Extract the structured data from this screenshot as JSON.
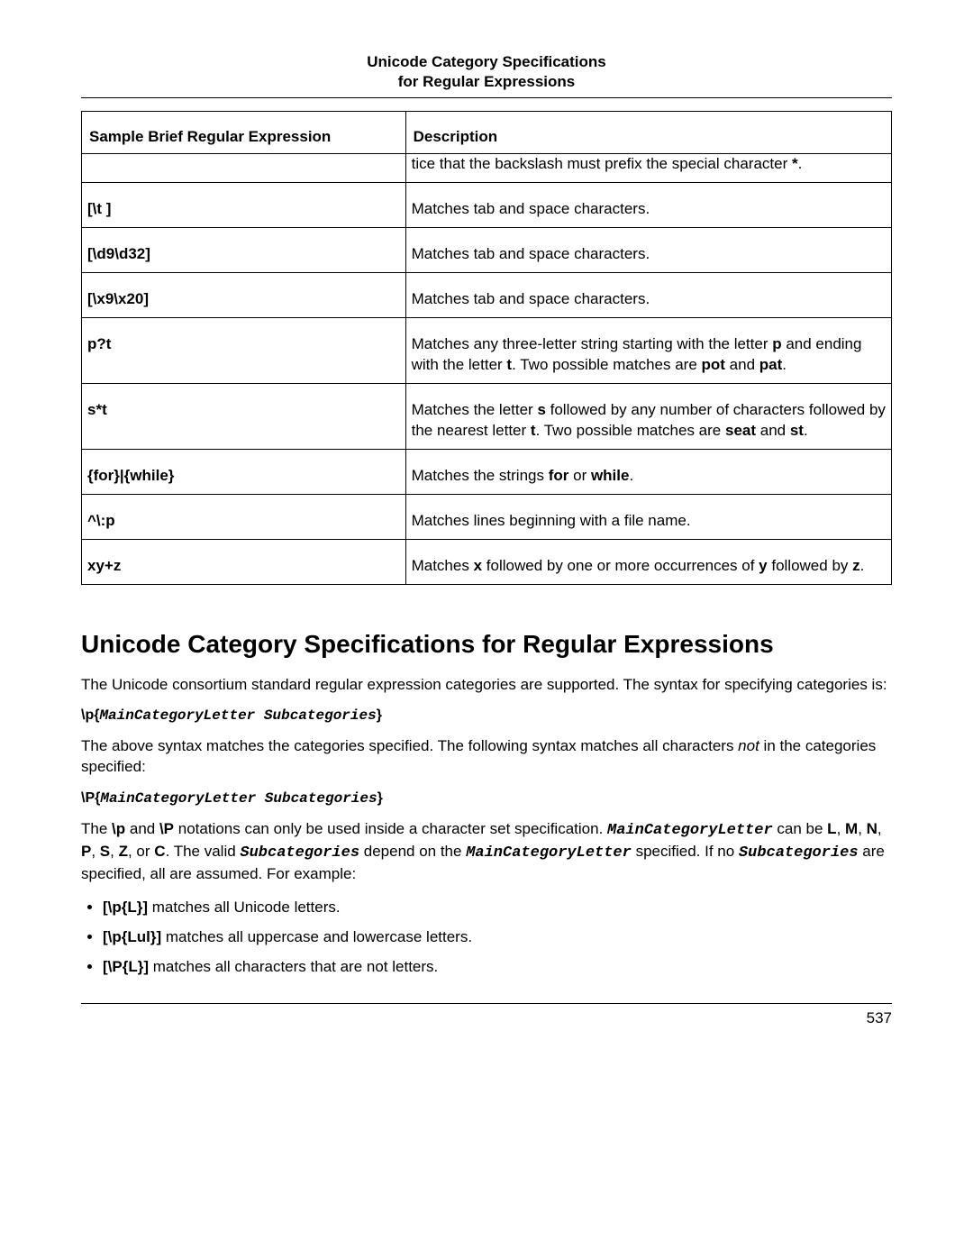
{
  "header": {
    "line1": "Unicode Category Specifications",
    "line2": "for Regular Expressions"
  },
  "table": {
    "columns": [
      "Sample Brief Regular Expression",
      "Description"
    ],
    "continuation": {
      "expr": "",
      "desc_html": "tice that the backslash must prefix the special character <b>*</b>."
    },
    "rows": [
      {
        "expr": "[\\t ]",
        "desc_html": "Matches tab and space characters."
      },
      {
        "expr": "[\\d9\\d32]",
        "desc_html": "Matches tab and space characters."
      },
      {
        "expr": "[\\x9\\x20]",
        "desc_html": "Matches tab and space characters."
      },
      {
        "expr": "p?t",
        "desc_html": "Matches any three-letter string starting with the letter <b>p</b> and ending with the letter <b>t</b>. Two possible matches are <b>pot</b> and <b>pat</b>."
      },
      {
        "expr": "s*t",
        "desc_html": "Matches the letter <b>s</b> followed by any number of characters followed by the nearest letter <b>t</b>. Two possible matches are <b>seat</b> and <b>st</b>."
      },
      {
        "expr": "{for}|{while}",
        "desc_html": "Matches the strings <b>for</b> or <b>while</b>."
      },
      {
        "expr": "^\\:p",
        "desc_html": "Matches lines beginning with a file name."
      },
      {
        "expr": "xy+z",
        "desc_html": "Matches <b>x</b> followed by one or more occurrences of <b>y</b> followed by <b>z</b>."
      }
    ]
  },
  "section": {
    "title": "Unicode Category Specifications for Regular Expressions",
    "para1": "The Unicode consortium standard regular expression categories are supported. The syntax for specifying categories is:",
    "syntax1_prefix": "\\p{",
    "syntax1_var": "MainCategoryLetter Subcategories",
    "syntax1_suffix": "}",
    "para2_html": "The above syntax matches the categories specified. The following syntax matches all characters <i>not</i> in the categories specified:",
    "syntax2_prefix": "\\P{",
    "syntax2_var": "MainCategoryLetter Subcategories",
    "syntax2_suffix": "}",
    "para3_html": "The <b>\\p</b> and <b>\\P</b> notations can only be used inside a character set specification. <span class=\"mono-bi\">MainCategoryLetter</span> can be <b>L</b>, <b>M</b>, <b>N</b>, <b>P</b>, <b>S</b>, <b>Z</b>, or <b>C</b>. The valid <span class=\"mono-bi\">Subcategories</span> depend on the <span class=\"mono-bi\">MainCategoryLetter</span> specified. If no <span class=\"mono-bi\">Subcategories</span> are specified, all are assumed. For example:",
    "bullets": [
      "<b>[\\p{L}]</b> matches all Unicode letters.",
      "<b>[\\p{Lul}]</b> matches all uppercase and lowercase letters.",
      "<b>[\\P{L}]</b> matches all characters that are not letters."
    ]
  },
  "page_number": "537"
}
